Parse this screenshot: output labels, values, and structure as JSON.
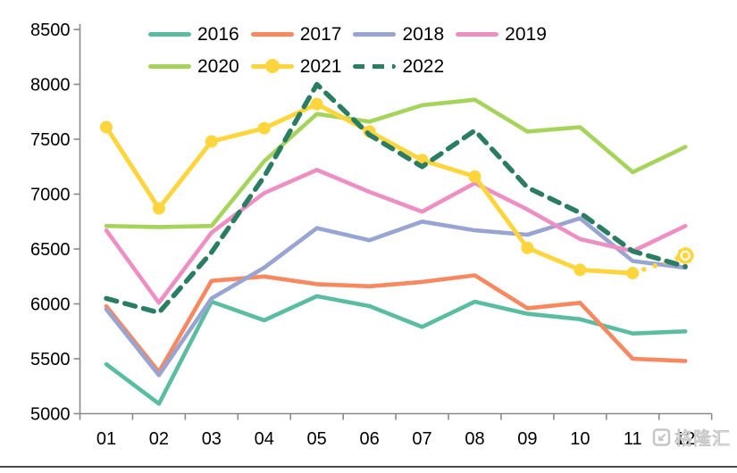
{
  "chart_data": {
    "type": "line",
    "title": "",
    "x_categories": [
      "01",
      "02",
      "03",
      "04",
      "05",
      "06",
      "07",
      "08",
      "09",
      "10",
      "11",
      "12"
    ],
    "y_tick_labels": [
      "5000",
      "5500",
      "6000",
      "6500",
      "7000",
      "7500",
      "8000",
      "8500"
    ],
    "ylim": [
      5000,
      8500
    ],
    "ytick_step": 500,
    "grid": false,
    "legend_position": "top",
    "legend_rows": [
      [
        "2016",
        "2017",
        "2018",
        "2019"
      ],
      [
        "2020",
        "2021",
        "2022"
      ]
    ],
    "series": [
      {
        "name": "2016",
        "color": "#5abda2",
        "line_style": "solid",
        "marker": "none",
        "values": [
          5450,
          5090,
          6020,
          5850,
          6070,
          5980,
          5790,
          6020,
          5910,
          5860,
          5730,
          5750
        ]
      },
      {
        "name": "2017",
        "color": "#f7885f",
        "line_style": "solid",
        "marker": "none",
        "values": [
          5980,
          5380,
          6210,
          6250,
          6180,
          6160,
          6200,
          6260,
          5960,
          6010,
          5500,
          5480
        ]
      },
      {
        "name": "2018",
        "color": "#98a5d3",
        "line_style": "solid",
        "marker": "none",
        "values": [
          5950,
          5350,
          6050,
          6330,
          6690,
          6580,
          6750,
          6670,
          6630,
          6780,
          6390,
          6330
        ]
      },
      {
        "name": "2019",
        "color": "#ee8fc4",
        "line_style": "solid",
        "marker": "none",
        "values": [
          6670,
          6010,
          6650,
          7010,
          7220,
          7020,
          6840,
          7100,
          6860,
          6590,
          6480,
          6710
        ]
      },
      {
        "name": "2020",
        "color": "#a6d35a",
        "line_style": "solid",
        "marker": "none",
        "values": [
          6710,
          6700,
          6710,
          7300,
          7730,
          7660,
          7810,
          7860,
          7570,
          7610,
          7200,
          7430
        ]
      },
      {
        "name": "2021",
        "color": "#ffd53d",
        "line_style": "solid",
        "marker": "circle",
        "last_segment_style": "dotted",
        "last_marker": "starburst",
        "values": [
          7610,
          6870,
          7480,
          7600,
          7820,
          7570,
          7310,
          7160,
          6510,
          6310,
          6280,
          6440
        ]
      },
      {
        "name": "2022",
        "color": "#2a7c62",
        "line_style": "dashed",
        "marker": "none",
        "values": [
          6050,
          5920,
          6470,
          7160,
          8000,
          7540,
          7250,
          7580,
          7060,
          6830,
          6480,
          6340
        ]
      }
    ]
  },
  "watermark": {
    "text": "格隆汇"
  }
}
